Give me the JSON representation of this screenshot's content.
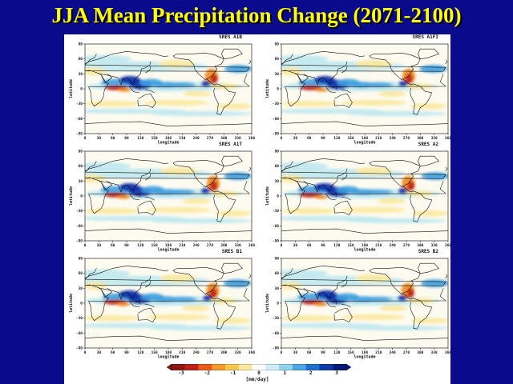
{
  "slide": {
    "title": "JJA Mean Precipitation Change (2071-2100)"
  },
  "map_common": {
    "xlabel": "longitude",
    "ylabel": "latitude",
    "lon_ticks": [
      "0",
      "30",
      "60",
      "90",
      "120",
      "150",
      "180",
      "210",
      "240",
      "270",
      "300",
      "330",
      "360"
    ],
    "lat_ticks": [
      "90",
      "60",
      "30",
      "0",
      "-30",
      "-60",
      "-90"
    ],
    "projection": "cylindrical equidistant, 0-360E",
    "colors": {
      "strong_drying": "#c0201a",
      "drying": "#f08a1c",
      "weak_drying": "#fbe9a0",
      "neutral": "#ffffff",
      "weak_wetting": "#bfe8f0",
      "wetting": "#3fa0e0",
      "strong_wetting": "#0a2fa8"
    }
  },
  "panels": [
    {
      "label": "SRES A1B"
    },
    {
      "label": "SRES A1FI"
    },
    {
      "label": "SRES A1T"
    },
    {
      "label": "SRES A2"
    },
    {
      "label": "SRES B1"
    },
    {
      "label": "SRES B2"
    }
  ],
  "colorbar": {
    "ticks": [
      "-3",
      "-2",
      "-1",
      "0",
      "1",
      "2",
      "3"
    ],
    "range": [
      -3,
      3
    ],
    "unit": "[mm/day]",
    "colors": [
      "#8b1a10",
      "#c0201a",
      "#e85a1a",
      "#f39a2a",
      "#f7c84a",
      "#fbe9a0",
      "#ffffff",
      "#cdeef6",
      "#8fd3ee",
      "#4aa6e4",
      "#1f6fd0",
      "#0c3aa8",
      "#061a78"
    ]
  }
}
